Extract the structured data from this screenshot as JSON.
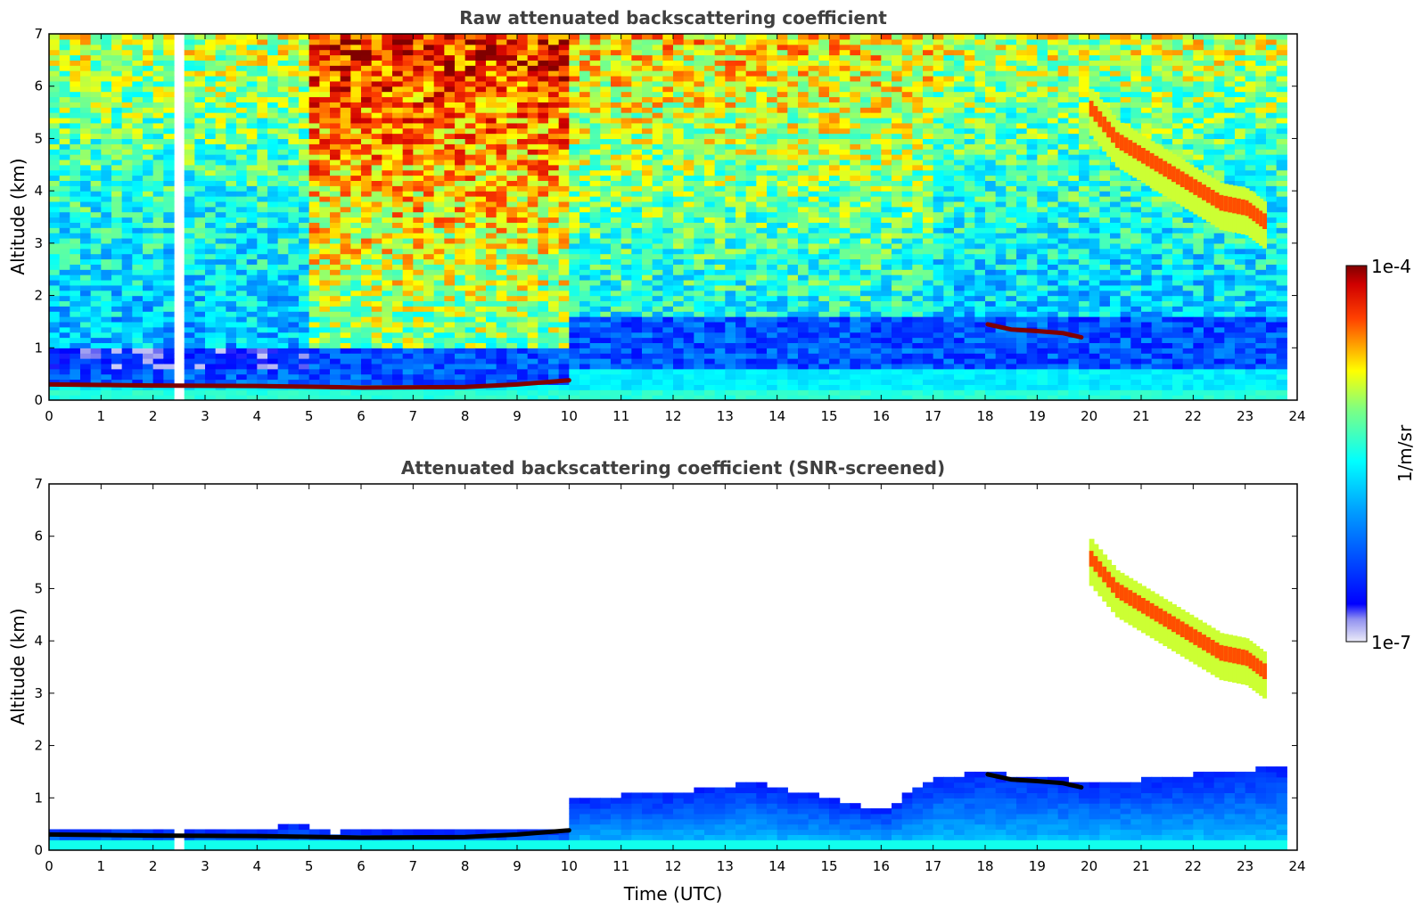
{
  "chart_data": [
    {
      "type": "heatmap",
      "title": "Raw attenuated backscattering coefficient",
      "xlabel": "",
      "ylabel": "Altitude (km)",
      "xlim": [
        0,
        24
      ],
      "ylim": [
        0,
        7
      ],
      "x_ticks": [
        "0",
        "1",
        "2",
        "3",
        "4",
        "5",
        "6",
        "7",
        "8",
        "9",
        "10",
        "11",
        "12",
        "13",
        "14",
        "15",
        "16",
        "17",
        "18",
        "19",
        "20",
        "21",
        "22",
        "23",
        "24"
      ],
      "y_ticks": [
        "0",
        "1",
        "2",
        "3",
        "4",
        "5",
        "6",
        "7"
      ],
      "screened": false,
      "features": {
        "data_gap_hours": [
          2.45,
          2.6
        ],
        "data_end_hour": 23.8,
        "surface_layer_km": [
          0,
          0.25
        ],
        "aerosol_top_before_10h_km": 0.35,
        "aerosol_top_after_10h_km": 0.6,
        "low_cloud_0_to_10h": [
          [
            0,
            0.3
          ],
          [
            2,
            0.28
          ],
          [
            4,
            0.27
          ],
          [
            6,
            0.24
          ],
          [
            8,
            0.25
          ],
          [
            9,
            0.3
          ],
          [
            10,
            0.38
          ]
        ],
        "low_cloud_18_to_20h": [
          [
            18.05,
            1.45
          ],
          [
            18.5,
            1.35
          ],
          [
            19,
            1.32
          ],
          [
            19.5,
            1.28
          ],
          [
            19.85,
            1.2
          ]
        ],
        "cirrus_fall_streak_20_to_23_5h": [
          [
            20,
            5.6
          ],
          [
            20.5,
            5.0
          ],
          [
            21,
            4.7
          ],
          [
            21.5,
            4.4
          ],
          [
            22,
            4.1
          ],
          [
            22.5,
            3.8
          ],
          [
            23,
            3.7
          ],
          [
            23.4,
            3.4
          ]
        ],
        "night_noise_high_hours": [
          5,
          10
        ]
      }
    },
    {
      "type": "heatmap",
      "title": "Attenuated backscattering coefficient (SNR-screened)",
      "xlabel": "Time (UTC)",
      "ylabel": "Altitude (km)",
      "xlim": [
        0,
        24
      ],
      "ylim": [
        0,
        7
      ],
      "x_ticks": [
        "0",
        "1",
        "2",
        "3",
        "4",
        "5",
        "6",
        "7",
        "8",
        "9",
        "10",
        "11",
        "12",
        "13",
        "14",
        "15",
        "16",
        "17",
        "18",
        "19",
        "20",
        "21",
        "22",
        "23",
        "24"
      ],
      "y_ticks": [
        "0",
        "1",
        "2",
        "3",
        "4",
        "5",
        "6",
        "7"
      ],
      "screened": true,
      "features": {
        "data_gap_hours": [
          2.45,
          2.6
        ],
        "data_end_hour": 23.8,
        "boundary_layer_top_km": [
          [
            0,
            0.4
          ],
          [
            4,
            0.38
          ],
          [
            4.8,
            0.5
          ],
          [
            5.5,
            0.35
          ],
          [
            9.9,
            0.4
          ],
          [
            10.1,
            1.0
          ],
          [
            12,
            1.1
          ],
          [
            13.5,
            1.3
          ],
          [
            15,
            1.0
          ],
          [
            16,
            0.75
          ],
          [
            17,
            1.4
          ],
          [
            18,
            1.5
          ],
          [
            20,
            1.3
          ],
          [
            21,
            1.35
          ],
          [
            22,
            1.45
          ],
          [
            23.8,
            1.6
          ]
        ],
        "low_cloud_0_to_10h": [
          [
            0,
            0.3
          ],
          [
            2,
            0.28
          ],
          [
            4,
            0.27
          ],
          [
            6,
            0.24
          ],
          [
            8,
            0.25
          ],
          [
            9,
            0.3
          ],
          [
            10,
            0.38
          ]
        ],
        "low_cloud_18_to_20h": [
          [
            18.05,
            1.45
          ],
          [
            18.5,
            1.35
          ],
          [
            19,
            1.32
          ],
          [
            19.5,
            1.28
          ],
          [
            19.85,
            1.2
          ]
        ],
        "cirrus_fall_streak_20_to_23_5h": [
          [
            20,
            5.6
          ],
          [
            20.5,
            5.0
          ],
          [
            21,
            4.7
          ],
          [
            21.5,
            4.4
          ],
          [
            22,
            4.1
          ],
          [
            22.5,
            3.8
          ],
          [
            23,
            3.7
          ],
          [
            23.4,
            3.4
          ]
        ]
      }
    }
  ],
  "colorbar": {
    "label": "1/m/sr",
    "max_label": "1e-4",
    "min_label": "1e-7",
    "scale": "log",
    "colormap": "jet",
    "colors": [
      "#e6e6f5",
      "#0000ff",
      "#00ffff",
      "#ffff00",
      "#ff0000",
      "#800000"
    ]
  }
}
